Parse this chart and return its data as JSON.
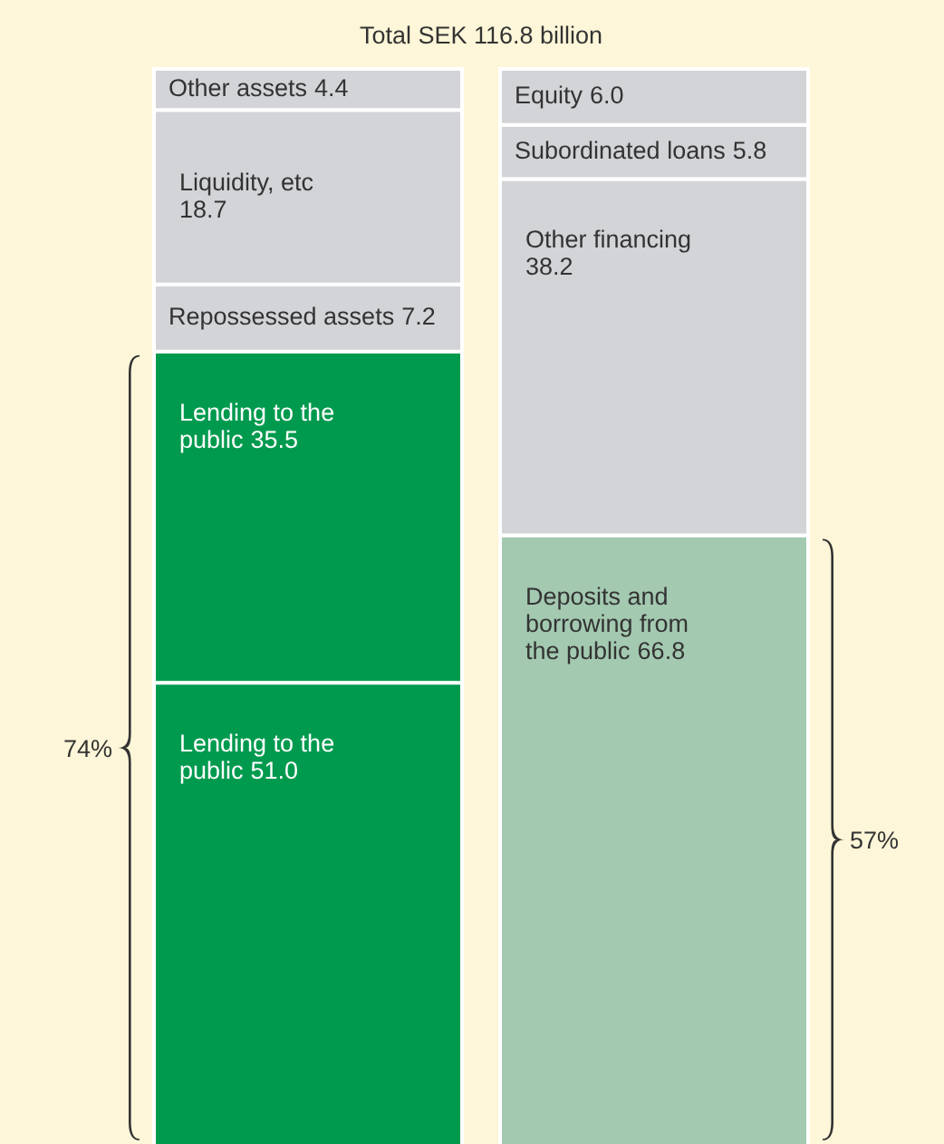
{
  "chart_data": {
    "type": "bar",
    "title": "Total SEK 116.8 billion",
    "categories": [
      null,
      null
    ],
    "stacked": true,
    "series": [
      {
        "name": "Lending to the public",
        "color": "#009a4e",
        "values": [
          51.0,
          null
        ],
        "value_labels": [
          "51.0",
          null
        ]
      },
      {
        "name": "Deposits and borrowing from the public",
        "color": "#a3c9b0",
        "values": [
          null,
          66.8
        ],
        "value_labels": [
          null,
          "66.8"
        ]
      },
      {
        "name": "Lending to the public",
        "color": "#009a4e",
        "values": [
          35.5,
          null
        ],
        "value_labels": [
          "35.5",
          null
        ]
      },
      {
        "name": "Repossessed assets",
        "color": "#d3d4d8",
        "values": [
          7.2,
          null
        ],
        "value_labels": [
          "7.2",
          null
        ]
      },
      {
        "name": "Liquidity, etc",
        "color": "#d3d4d8",
        "values": [
          18.7,
          null
        ],
        "value_labels": [
          "18.7",
          null
        ]
      },
      {
        "name": "Other assets",
        "color": "#d3d4d8",
        "values": [
          4.4,
          null
        ],
        "value_labels": [
          "4.4",
          null
        ]
      },
      {
        "name": "Other financing",
        "color": "#d3d4d8",
        "values": [
          null,
          38.2
        ],
        "value_labels": [
          null,
          "38.2"
        ]
      },
      {
        "name": "Subordinated loans",
        "color": "#d3d4d8",
        "values": [
          null,
          5.8
        ],
        "value_labels": [
          null,
          "5.8"
        ]
      },
      {
        "name": "Equity",
        "color": "#d3d4d8",
        "values": [
          null,
          6.0
        ],
        "value_labels": [
          null,
          "6.0"
        ]
      }
    ],
    "annotations": [
      "74%",
      "57%"
    ]
  }
}
